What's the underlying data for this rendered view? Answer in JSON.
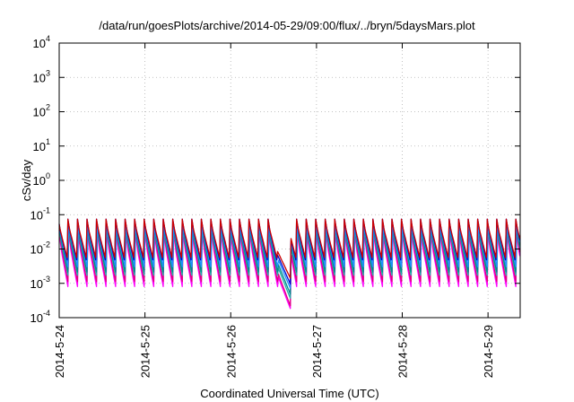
{
  "chart_data": {
    "type": "line",
    "title": "/data/run/goesPlots/archive/2014-05-29/09:00/flux/../bryn/5daysMars.plot",
    "xlabel": "Coordinated Universal Time (UTC)",
    "ylabel": "cSv/day",
    "y_scale": "log",
    "ylim": [
      0.0001,
      10000
    ],
    "xlim": [
      "2014-05-24",
      "2014-05-29 09:00"
    ],
    "grid": true,
    "legend": "none",
    "x_ticks": [
      "2014-5-24",
      "2014-5-25",
      "2014-5-26",
      "2014-5-27",
      "2014-5-28",
      "2014-5-29"
    ],
    "y_ticks": [
      {
        "base": "10",
        "exp": "-4"
      },
      {
        "base": "10",
        "exp": "-3"
      },
      {
        "base": "10",
        "exp": "-2"
      },
      {
        "base": "10",
        "exp": "-1"
      },
      {
        "base": "10",
        "exp": "0"
      },
      {
        "base": "10",
        "exp": "1"
      },
      {
        "base": "10",
        "exp": "2"
      },
      {
        "base": "10",
        "exp": "3"
      },
      {
        "base": "10",
        "exp": "4"
      }
    ],
    "cycles_per_day": 9,
    "series": [
      {
        "color": "#ff00ff",
        "values_min": 0.0006,
        "values_max": 0.03,
        "dropout_min": 0.00015
      },
      {
        "color": "#e0007f",
        "values_min": 0.0009,
        "values_max": 0.04,
        "dropout_min": 0.00018
      },
      {
        "color": "#20b2aa",
        "values_min": 0.0015,
        "values_max": 0.05,
        "dropout_min": 0.0003
      },
      {
        "color": "#008b8b",
        "values_min": 0.002,
        "values_max": 0.06,
        "dropout_min": 0.0004
      },
      {
        "color": "#1e90ff",
        "values_min": 0.003,
        "values_max": 0.07,
        "dropout_min": 0.0006
      },
      {
        "color": "#0000cd",
        "values_min": 0.004,
        "values_max": 0.08,
        "dropout_min": 0.0008
      },
      {
        "color": "#cc0000",
        "values_min": 0.005,
        "values_max": 0.085,
        "dropout_min": 0.0012
      }
    ],
    "dropout_window": [
      "2014-05-26 12:20",
      "2014-05-26 17:00"
    ]
  }
}
